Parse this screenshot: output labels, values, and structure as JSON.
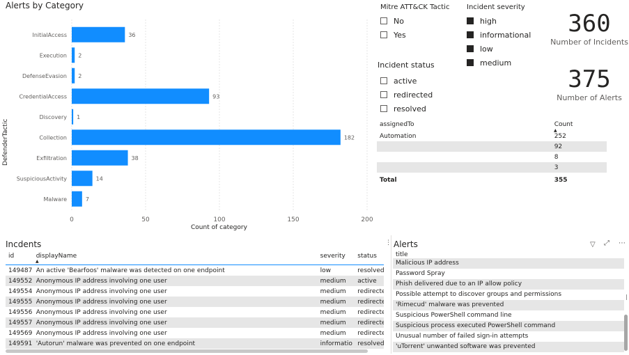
{
  "chart": {
    "title": "Alerts by Category",
    "ylabel": "DefenderTactic",
    "xlabel": "Count of category",
    "bar_color": "#118dff",
    "ticks": [
      0,
      50,
      100,
      150,
      200
    ]
  },
  "chart_data": {
    "type": "bar",
    "orientation": "horizontal",
    "title": "Alerts by Category",
    "xlabel": "Count of category",
    "ylabel": "DefenderTactic",
    "xlim": [
      0,
      200
    ],
    "grid": true,
    "categories": [
      "InitialAccess",
      "Execution",
      "DefenseEvasion",
      "CredentialAccess",
      "Discovery",
      "Collection",
      "Exfiltration",
      "SuspiciousActivity",
      "Malware"
    ],
    "values": [
      36,
      2,
      2,
      93,
      1,
      182,
      38,
      14,
      7
    ]
  },
  "slicers": {
    "mitre": {
      "title": "Mitre ATT&CK Tactic",
      "items": [
        "No",
        "Yes"
      ]
    },
    "severity": {
      "title": "Incident severity",
      "items": [
        "high",
        "informational",
        "low",
        "medium"
      ]
    },
    "status": {
      "title": "Incident status",
      "items": [
        "active",
        "redirected",
        "resolved"
      ]
    }
  },
  "kpis": {
    "incidents": {
      "value": "360",
      "label": "Number of Incidents"
    },
    "alerts": {
      "value": "375",
      "label": "Number of Alerts"
    }
  },
  "assigned": {
    "headers": [
      "assignedTo",
      "Count"
    ],
    "rows": [
      {
        "name": "Automation",
        "count": "252"
      },
      {
        "name": "",
        "count": "92"
      },
      {
        "name": "",
        "count": "8"
      },
      {
        "name": "",
        "count": "3"
      }
    ],
    "total_label": "Total",
    "total_count": "355"
  },
  "incidents": {
    "title": "Incdents",
    "headers": {
      "id": "id",
      "displayName": "displayName",
      "severity": "severity",
      "status": "status"
    },
    "rows": [
      {
        "id": "149487",
        "displayName": "An active 'Bearfoos' malware was detected on one endpoint",
        "severity": "low",
        "status": "resolved"
      },
      {
        "id": "149552",
        "displayName": "Anonymous IP address involving one user",
        "severity": "medium",
        "status": "active"
      },
      {
        "id": "149554",
        "displayName": "Anonymous IP address involving one user",
        "severity": "medium",
        "status": "redirecte"
      },
      {
        "id": "149555",
        "displayName": "Anonymous IP address involving one user",
        "severity": "medium",
        "status": "redirecte"
      },
      {
        "id": "149556",
        "displayName": "Anonymous IP address involving one user",
        "severity": "medium",
        "status": "redirecte"
      },
      {
        "id": "149557",
        "displayName": "Anonymous IP address involving one user",
        "severity": "medium",
        "status": "redirecte"
      },
      {
        "id": "149569",
        "displayName": "Anonymous IP address involving one user",
        "severity": "medium",
        "status": "redirecte"
      },
      {
        "id": "149591",
        "displayName": "'Autorun' malware was prevented on one endpoint",
        "severity": "informatio",
        "status": "resolved"
      }
    ]
  },
  "alerts": {
    "title": "Alerts",
    "header": "title",
    "rows": [
      "Malicious IP address",
      "Password Spray",
      "Phish delivered due to an IP allow policy",
      "Possible attempt to discover groups and permissions",
      "'Rimecud' malware was prevented",
      "Suspicious PowerShell command line",
      "Suspicious process executed PowerShell command",
      "Unusual number of failed sign-in attempts",
      "'uTorrent' unwanted software was prevented"
    ]
  }
}
